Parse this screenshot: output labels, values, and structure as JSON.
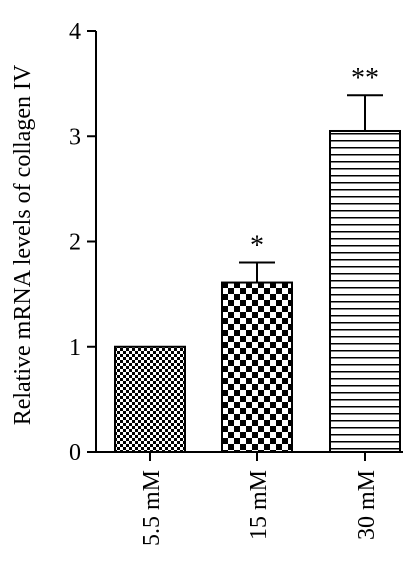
{
  "chart_data": {
    "type": "bar",
    "ylabel": "Relative mRNA levels of collagen IV",
    "xlabel": "",
    "categories": [
      "5.5 mM",
      "15 mM",
      "30 mM"
    ],
    "values": [
      1.0,
      1.61,
      3.05
    ],
    "errors": [
      0,
      0.19,
      0.34
    ],
    "significance": [
      "",
      "*",
      "**"
    ],
    "patterns": [
      "fine-checker",
      "coarse-checker",
      "horizontal-lines"
    ],
    "ylim": [
      0,
      4
    ],
    "yticks": [
      0,
      1,
      2,
      3,
      4
    ],
    "grid": false,
    "legend": "none",
    "colors": {
      "bar_stroke": "#000000",
      "fill": "#000000",
      "background": "#ffffff"
    }
  }
}
